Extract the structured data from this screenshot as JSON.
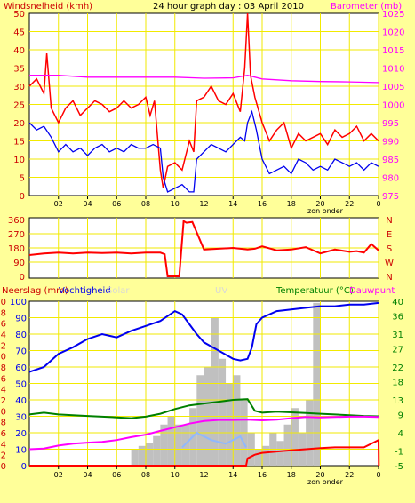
{
  "title": "24 hour graph day : 03 April 2010",
  "chart_data": [
    {
      "id": "wind",
      "type": "line",
      "left_axis_label": "Windsnelheid (kmh)",
      "right_axis_label": "Barometer (mb)",
      "ylim_left": [
        0,
        50
      ],
      "yticks_left": [
        0,
        5,
        10,
        15,
        20,
        25,
        30,
        35,
        40,
        45,
        50
      ],
      "ylim_right": [
        975,
        1025
      ],
      "yticks_right": [
        975,
        980,
        985,
        990,
        995,
        1000,
        1005,
        1010,
        1015,
        1020,
        1025
      ],
      "x_ticks": [
        "02",
        "04",
        "06",
        "08",
        "10",
        "12",
        "14",
        "16",
        "18",
        "20",
        "22",
        "0"
      ],
      "x_note": "zon onder",
      "grid": true,
      "series": [
        {
          "name": "gust",
          "axis": "left",
          "color": "#ff0000",
          "x": [
            0,
            0.5,
            1,
            1.2,
            1.5,
            2,
            2.5,
            3,
            3.5,
            4,
            4.5,
            5,
            5.5,
            6,
            6.5,
            7,
            7.5,
            8,
            8.3,
            8.6,
            9,
            9.2,
            9.5,
            10,
            10.5,
            11,
            11.3,
            11.5,
            12,
            12.5,
            13,
            13.5,
            14,
            14.5,
            14.8,
            15,
            15.2,
            15.5,
            16,
            16.5,
            17,
            17.5,
            18,
            18.5,
            19,
            19.5,
            20,
            20.5,
            21,
            21.5,
            22,
            22.5,
            23,
            23.5,
            24
          ],
          "y": [
            30,
            32,
            28,
            39,
            24,
            20,
            24,
            26,
            22,
            24,
            26,
            25,
            23,
            24,
            26,
            24,
            25,
            27,
            22,
            26,
            7,
            2,
            8,
            9,
            7,
            15,
            12,
            26,
            27,
            30,
            26,
            25,
            28,
            23,
            35,
            50,
            33,
            27,
            20,
            15,
            18,
            20,
            13,
            17,
            15,
            16,
            17,
            14,
            18,
            16,
            17,
            19,
            15,
            17,
            15
          ]
        },
        {
          "name": "average",
          "axis": "left",
          "color": "#0000ee",
          "x": [
            0,
            0.5,
            1,
            1.5,
            2,
            2.5,
            3,
            3.5,
            4,
            4.5,
            5,
            5.5,
            6,
            6.5,
            7,
            7.5,
            8,
            8.5,
            9,
            9.2,
            9.5,
            10,
            10.5,
            11,
            11.3,
            11.5,
            12,
            12.5,
            13,
            13.5,
            14,
            14.5,
            14.8,
            15,
            15.3,
            15.6,
            16,
            16.5,
            17,
            17.5,
            18,
            18.5,
            19,
            19.5,
            20,
            20.5,
            21,
            21.5,
            22,
            22.5,
            23,
            23.5,
            24
          ],
          "y": [
            20,
            18,
            19,
            16,
            12,
            14,
            12,
            13,
            11,
            13,
            14,
            12,
            13,
            12,
            14,
            13,
            13,
            14,
            13,
            5,
            1,
            2,
            3,
            1,
            1,
            10,
            12,
            14,
            13,
            12,
            14,
            16,
            15,
            20,
            23,
            18,
            10,
            6,
            7,
            8,
            6,
            10,
            9,
            7,
            8,
            7,
            10,
            9,
            8,
            9,
            7,
            9,
            8
          ]
        },
        {
          "name": "pressure",
          "axis": "right",
          "color": "#ff00ff",
          "x": [
            0,
            2,
            4,
            6,
            8,
            10,
            12,
            14,
            15,
            16,
            18,
            20,
            22,
            24
          ],
          "y": [
            1008,
            1008,
            1007.5,
            1007.5,
            1007.5,
            1007.5,
            1007.2,
            1007.3,
            1008,
            1007,
            1006.5,
            1006.3,
            1006.2,
            1006
          ]
        }
      ]
    },
    {
      "id": "direction",
      "type": "line",
      "ylim": [
        0,
        360
      ],
      "yticks": [
        0,
        90,
        180,
        270,
        360
      ],
      "right_labels": [
        "N",
        "W",
        "S",
        "E",
        "N"
      ],
      "grid": true,
      "series": [
        {
          "name": "direction",
          "color": "#ff0000",
          "x": [
            0,
            1,
            2,
            3,
            4,
            5,
            6,
            7,
            8,
            9,
            9.3,
            9.5,
            10.3,
            10.6,
            10.8,
            11.2,
            12,
            13,
            14,
            15,
            15.5,
            16,
            17,
            18,
            19,
            20,
            21,
            22,
            22.5,
            23,
            23.5,
            24
          ],
          "y": [
            135,
            145,
            150,
            145,
            150,
            148,
            150,
            145,
            150,
            150,
            140,
            0,
            0,
            350,
            340,
            345,
            170,
            175,
            180,
            170,
            175,
            190,
            165,
            170,
            185,
            145,
            170,
            155,
            160,
            150,
            205,
            165
          ]
        }
      ]
    },
    {
      "id": "precip",
      "type": "line",
      "left_axis_label": "Neerslag (mm)",
      "left2_axis_label": "Vochtigheid",
      "solar_label": "Solar",
      "uv_label": "UV",
      "right_axis_label": "Temperatuur (°C)",
      "right2_axis_label": "Dauwpunt",
      "yticks_left1": [
        0,
        2,
        4,
        6,
        8,
        10,
        12,
        14,
        16,
        18,
        20,
        22,
        24,
        26,
        28,
        30
      ],
      "yticks_left2": [
        0,
        10,
        20,
        30,
        40,
        50,
        60,
        70,
        80,
        90,
        100
      ],
      "ylim_left2": [
        0,
        100
      ],
      "yticks_right": [
        -5,
        -1,
        4,
        9,
        13,
        18,
        22,
        27,
        31,
        36,
        40
      ],
      "ylim_right": [
        -5,
        40
      ],
      "x_ticks": [
        "02",
        "04",
        "06",
        "08",
        "10",
        "12",
        "14",
        "16",
        "18",
        "20",
        "22",
        "0"
      ],
      "x_note": "zon onder",
      "grid": true,
      "series": [
        {
          "name": "humidity",
          "axis": "left2",
          "color": "#0000ee",
          "x": [
            0,
            1,
            2,
            3,
            4,
            5,
            6,
            7,
            8,
            9,
            10,
            10.5,
            11,
            11.5,
            12,
            13,
            14,
            14.5,
            15,
            15.3,
            15.6,
            16,
            17,
            18,
            19,
            20,
            21,
            22,
            23,
            24
          ],
          "y": [
            57,
            60,
            68,
            72,
            77,
            80,
            78,
            82,
            85,
            88,
            94,
            92,
            86,
            80,
            75,
            70,
            65,
            64,
            65,
            72,
            86,
            90,
            94,
            95,
            96,
            97,
            97,
            98,
            98,
            99
          ]
        },
        {
          "name": "temperature",
          "axis": "right",
          "color": "#008000",
          "x": [
            0,
            1,
            2,
            3,
            4,
            5,
            6,
            7,
            8,
            9,
            10,
            11,
            12,
            13,
            14,
            15,
            15.5,
            16,
            17,
            18,
            19,
            20,
            21,
            22,
            23,
            24
          ],
          "y": [
            9,
            9.5,
            9,
            8.8,
            8.6,
            8.4,
            8.2,
            8,
            8.4,
            9.2,
            10.5,
            11.5,
            12,
            12.5,
            13,
            13.2,
            10,
            9.5,
            9.8,
            9.6,
            9.4,
            9.2,
            9,
            8.8,
            8.6,
            8.5
          ]
        },
        {
          "name": "dewpoint",
          "axis": "right",
          "color": "#ff00ff",
          "x": [
            0,
            1,
            2,
            3,
            4,
            5,
            6,
            7,
            8,
            9,
            10,
            11,
            12,
            13,
            14,
            15,
            16,
            17,
            18,
            19,
            20,
            21,
            22,
            23,
            24
          ],
          "y": [
            -0.5,
            -0.3,
            0.5,
            1,
            1.3,
            1.5,
            2,
            2.8,
            3.5,
            4.5,
            5.5,
            6.5,
            7.2,
            7.5,
            7.5,
            7.6,
            7.4,
            7.6,
            8,
            8.3,
            8.2,
            8.3,
            8.4,
            8.4,
            8.3
          ]
        },
        {
          "name": "rain",
          "axis": "right",
          "color": "#ff0000",
          "x": [
            0,
            14.9,
            15,
            15.5,
            16,
            18,
            19,
            20,
            21,
            22,
            23,
            24,
            24.02
          ],
          "y": [
            -5,
            -5,
            -3,
            -2,
            -1.5,
            -0.8,
            -0.5,
            -0.2,
            0,
            0,
            0,
            2,
            -5
          ]
        },
        {
          "name": "solar_uv",
          "axis": "right",
          "color": "#8fb8ff",
          "x": [
            10.5,
            11.5,
            12.5,
            13.5,
            14.5,
            14.9
          ],
          "y": [
            0,
            4,
            2,
            1,
            3,
            0
          ]
        }
      ],
      "solar_bars": {
        "color": "#c0c0c0",
        "x": [
          7,
          7.5,
          8,
          8.5,
          9,
          9.5,
          10,
          10.5,
          11,
          11.5,
          12,
          12.5,
          13,
          13.5,
          14,
          14.5,
          15,
          15.5,
          16,
          16.5,
          17,
          17.5,
          18,
          18.5,
          19,
          19.5,
          20
        ],
        "y": [
          10,
          12,
          14,
          18,
          25,
          30,
          25,
          25,
          35,
          55,
          60,
          90,
          65,
          50,
          55,
          40,
          20,
          10,
          12,
          20,
          15,
          25,
          35,
          20,
          40,
          99,
          0
        ]
      }
    }
  ]
}
